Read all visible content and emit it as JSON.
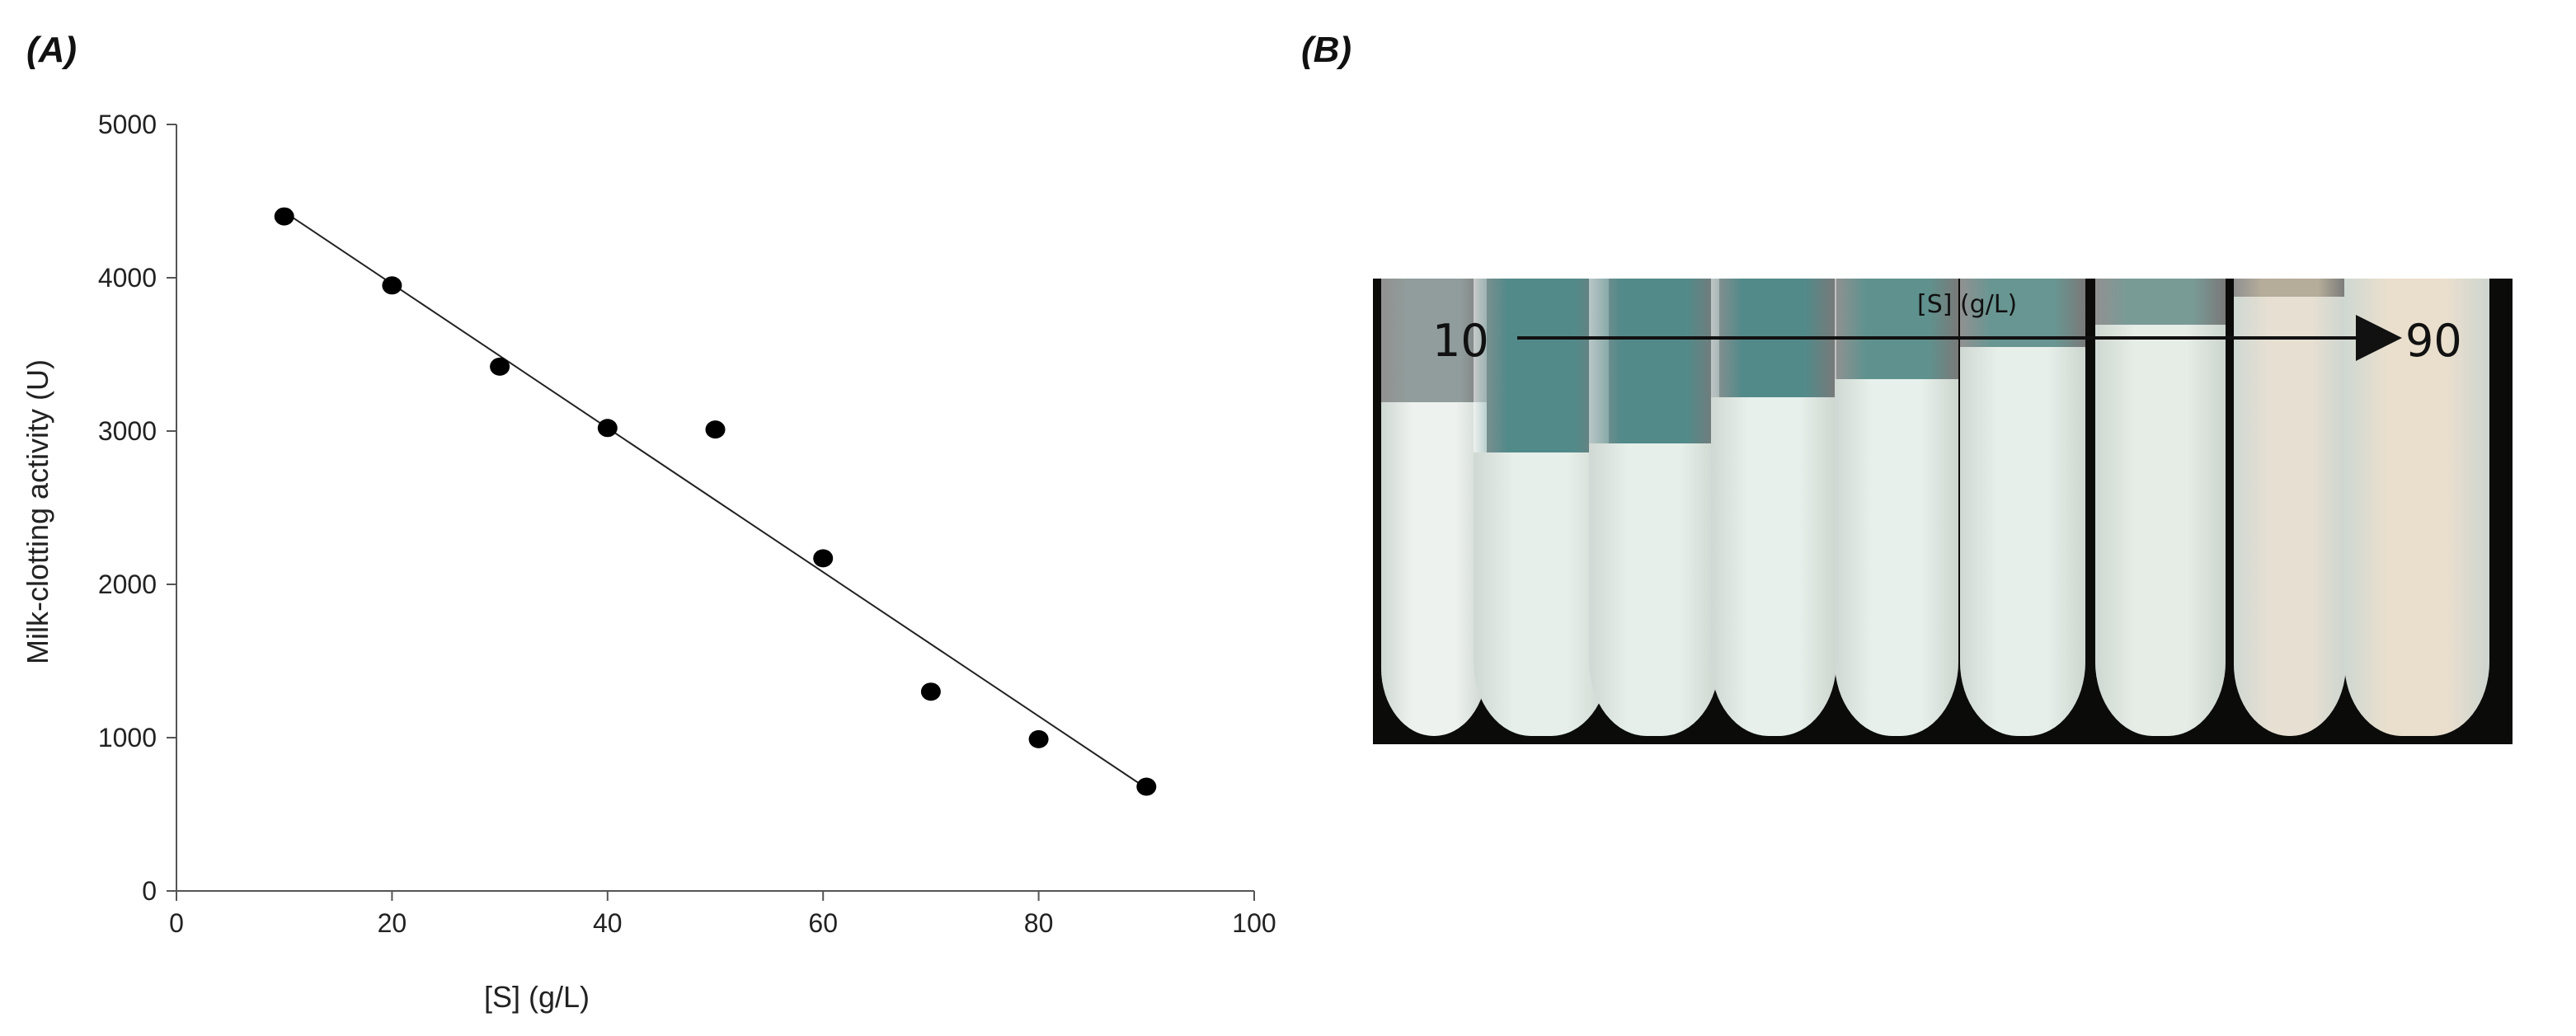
{
  "panels": {
    "a_label": "(A)",
    "b_label": "(B)"
  },
  "chart_data": {
    "type": "scatter",
    "x": [
      10,
      20,
      30,
      40,
      50,
      60,
      70,
      80,
      90
    ],
    "y": [
      4400,
      3950,
      3420,
      3020,
      3010,
      2170,
      1300,
      990,
      680
    ],
    "trendline": {
      "x": [
        10,
        90
      ],
      "y": [
        4430,
        670
      ]
    },
    "xlabel": "[S] (g/L)",
    "ylabel": "Milk-clotting activity (U)",
    "xlim": [
      0,
      100
    ],
    "ylim": [
      0,
      5000
    ],
    "xticks": [
      0,
      20,
      40,
      60,
      80,
      100
    ],
    "yticks": [
      0,
      1000,
      2000,
      3000,
      4000,
      5000
    ],
    "grid": false,
    "marker_color": "#000000"
  },
  "photo": {
    "arrow_label": "[S] (g/L)",
    "start_label": "10",
    "end_label": "90",
    "tube_count": 9
  }
}
